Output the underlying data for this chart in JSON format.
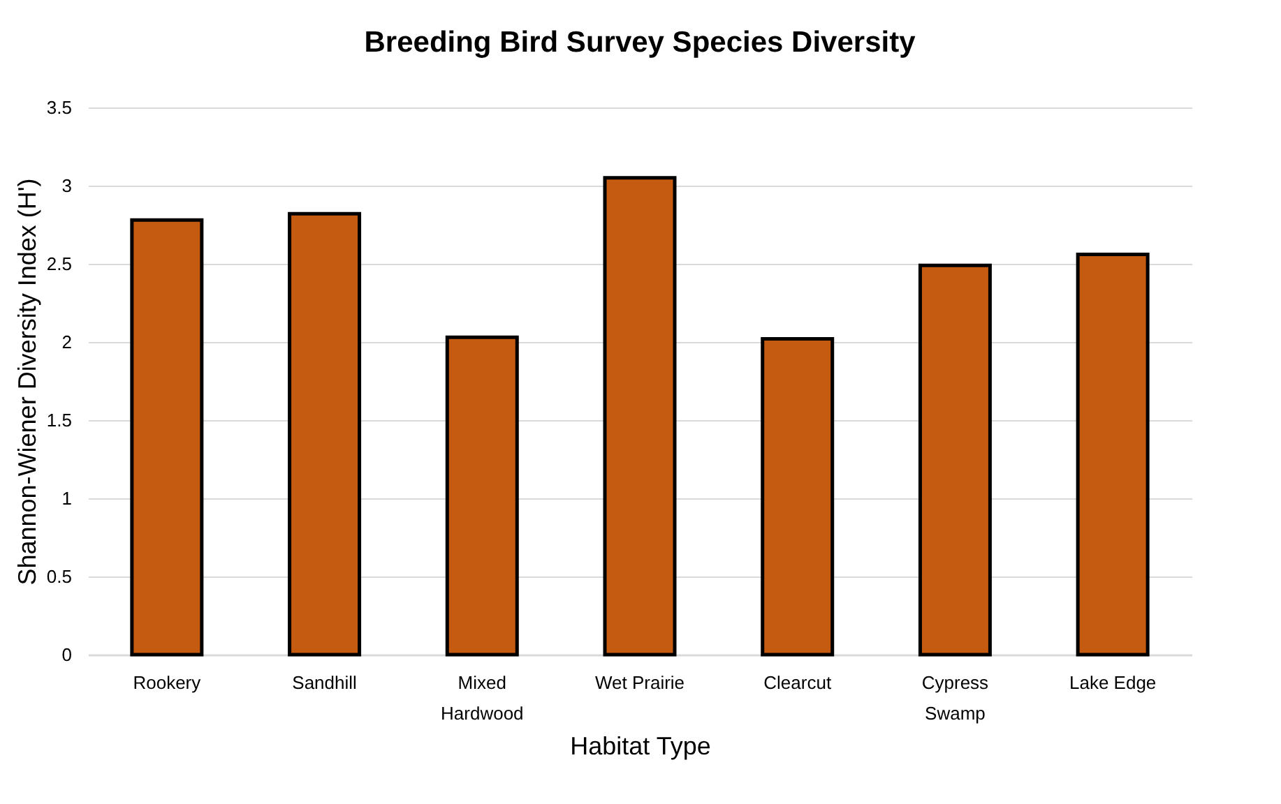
{
  "chart_data": {
    "type": "bar",
    "title": "Breeding Bird Survey Species Diversity",
    "xlabel": "Habitat Type",
    "ylabel": "Shannon-Wiener Diversity Index (H')",
    "categories": [
      "Rookery",
      "Sandhill",
      "Mixed Hardwood",
      "Wet Prairie",
      "Clearcut",
      "Cypress Swamp",
      "Lake Edge"
    ],
    "values": [
      2.78,
      2.82,
      2.03,
      3.05,
      2.02,
      2.49,
      2.56
    ],
    "color": "#c55a11",
    "ylim": [
      0,
      3.5
    ],
    "yticks": [
      0,
      0.5,
      1,
      1.5,
      2,
      2.5,
      3,
      3.5
    ],
    "grid": "y"
  }
}
